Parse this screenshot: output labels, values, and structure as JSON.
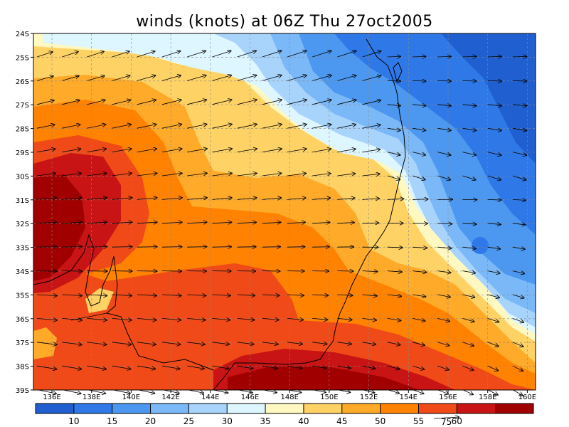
{
  "title": "winds (knots) at 06Z Thu 27oct2005",
  "lat_labels": [
    "24S",
    "25S",
    "26S",
    "27S",
    "28S",
    "29S",
    "30S",
    "31S",
    "32S",
    "33S",
    "34S",
    "35S",
    "36S",
    "37S",
    "38S",
    "39S"
  ],
  "lon_labels": [
    "136E",
    "138E",
    "140E",
    "142E",
    "144E",
    "146E",
    "148E",
    "150E",
    "152E",
    "154E",
    "156E",
    "158E",
    "160E"
  ],
  "colorbar": {
    "colors": [
      "#1f5fd0",
      "#2f78e8",
      "#4c98f0",
      "#7ab8f8",
      "#a8d4fc",
      "#ddf6ff",
      "#fff8c0",
      "#ffd266",
      "#ffaa28",
      "#ff8200",
      "#f04a18",
      "#c81414",
      "#a00000"
    ],
    "labels": [
      "10",
      "15",
      "20",
      "25",
      "30",
      "35",
      "40",
      "45",
      "50",
      "55",
      "60"
    ]
  },
  "reference_vector": {
    "label": "75"
  }
}
